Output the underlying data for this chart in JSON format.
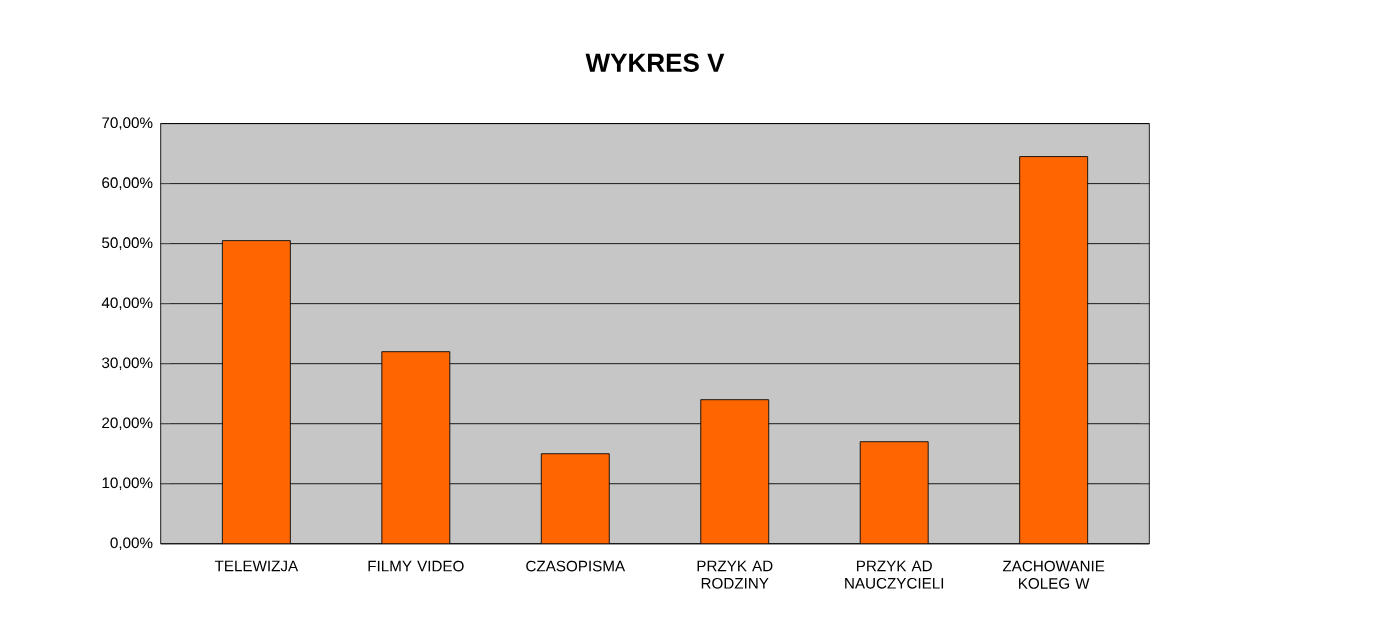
{
  "chart_data": {
    "type": "bar",
    "title": "WYKRES V",
    "categories": [
      "TELEWIZJA",
      "FILMY VIDEO",
      "CZASOPISMA",
      "PRZYK AD RODZINY",
      "PRZYK AD NAUCZYCIELI",
      "ZACHOWANIE KOLEG W"
    ],
    "values": [
      50.5,
      32,
      15,
      24,
      17,
      64.5
    ],
    "color": "#ff6600",
    "ylim": [
      0,
      70
    ],
    "yticks": [
      {
        "value": 0,
        "label": "0,00%"
      },
      {
        "value": 10,
        "label": "10,00%"
      },
      {
        "value": 20,
        "label": "20,00%"
      },
      {
        "value": 30,
        "label": "30,00%"
      },
      {
        "value": 40,
        "label": "40,00%"
      },
      {
        "value": 50,
        "label": "50,00%"
      },
      {
        "value": 60,
        "label": "60,00%"
      },
      {
        "value": 70,
        "label": "70,00%"
      }
    ],
    "grid": "y"
  }
}
